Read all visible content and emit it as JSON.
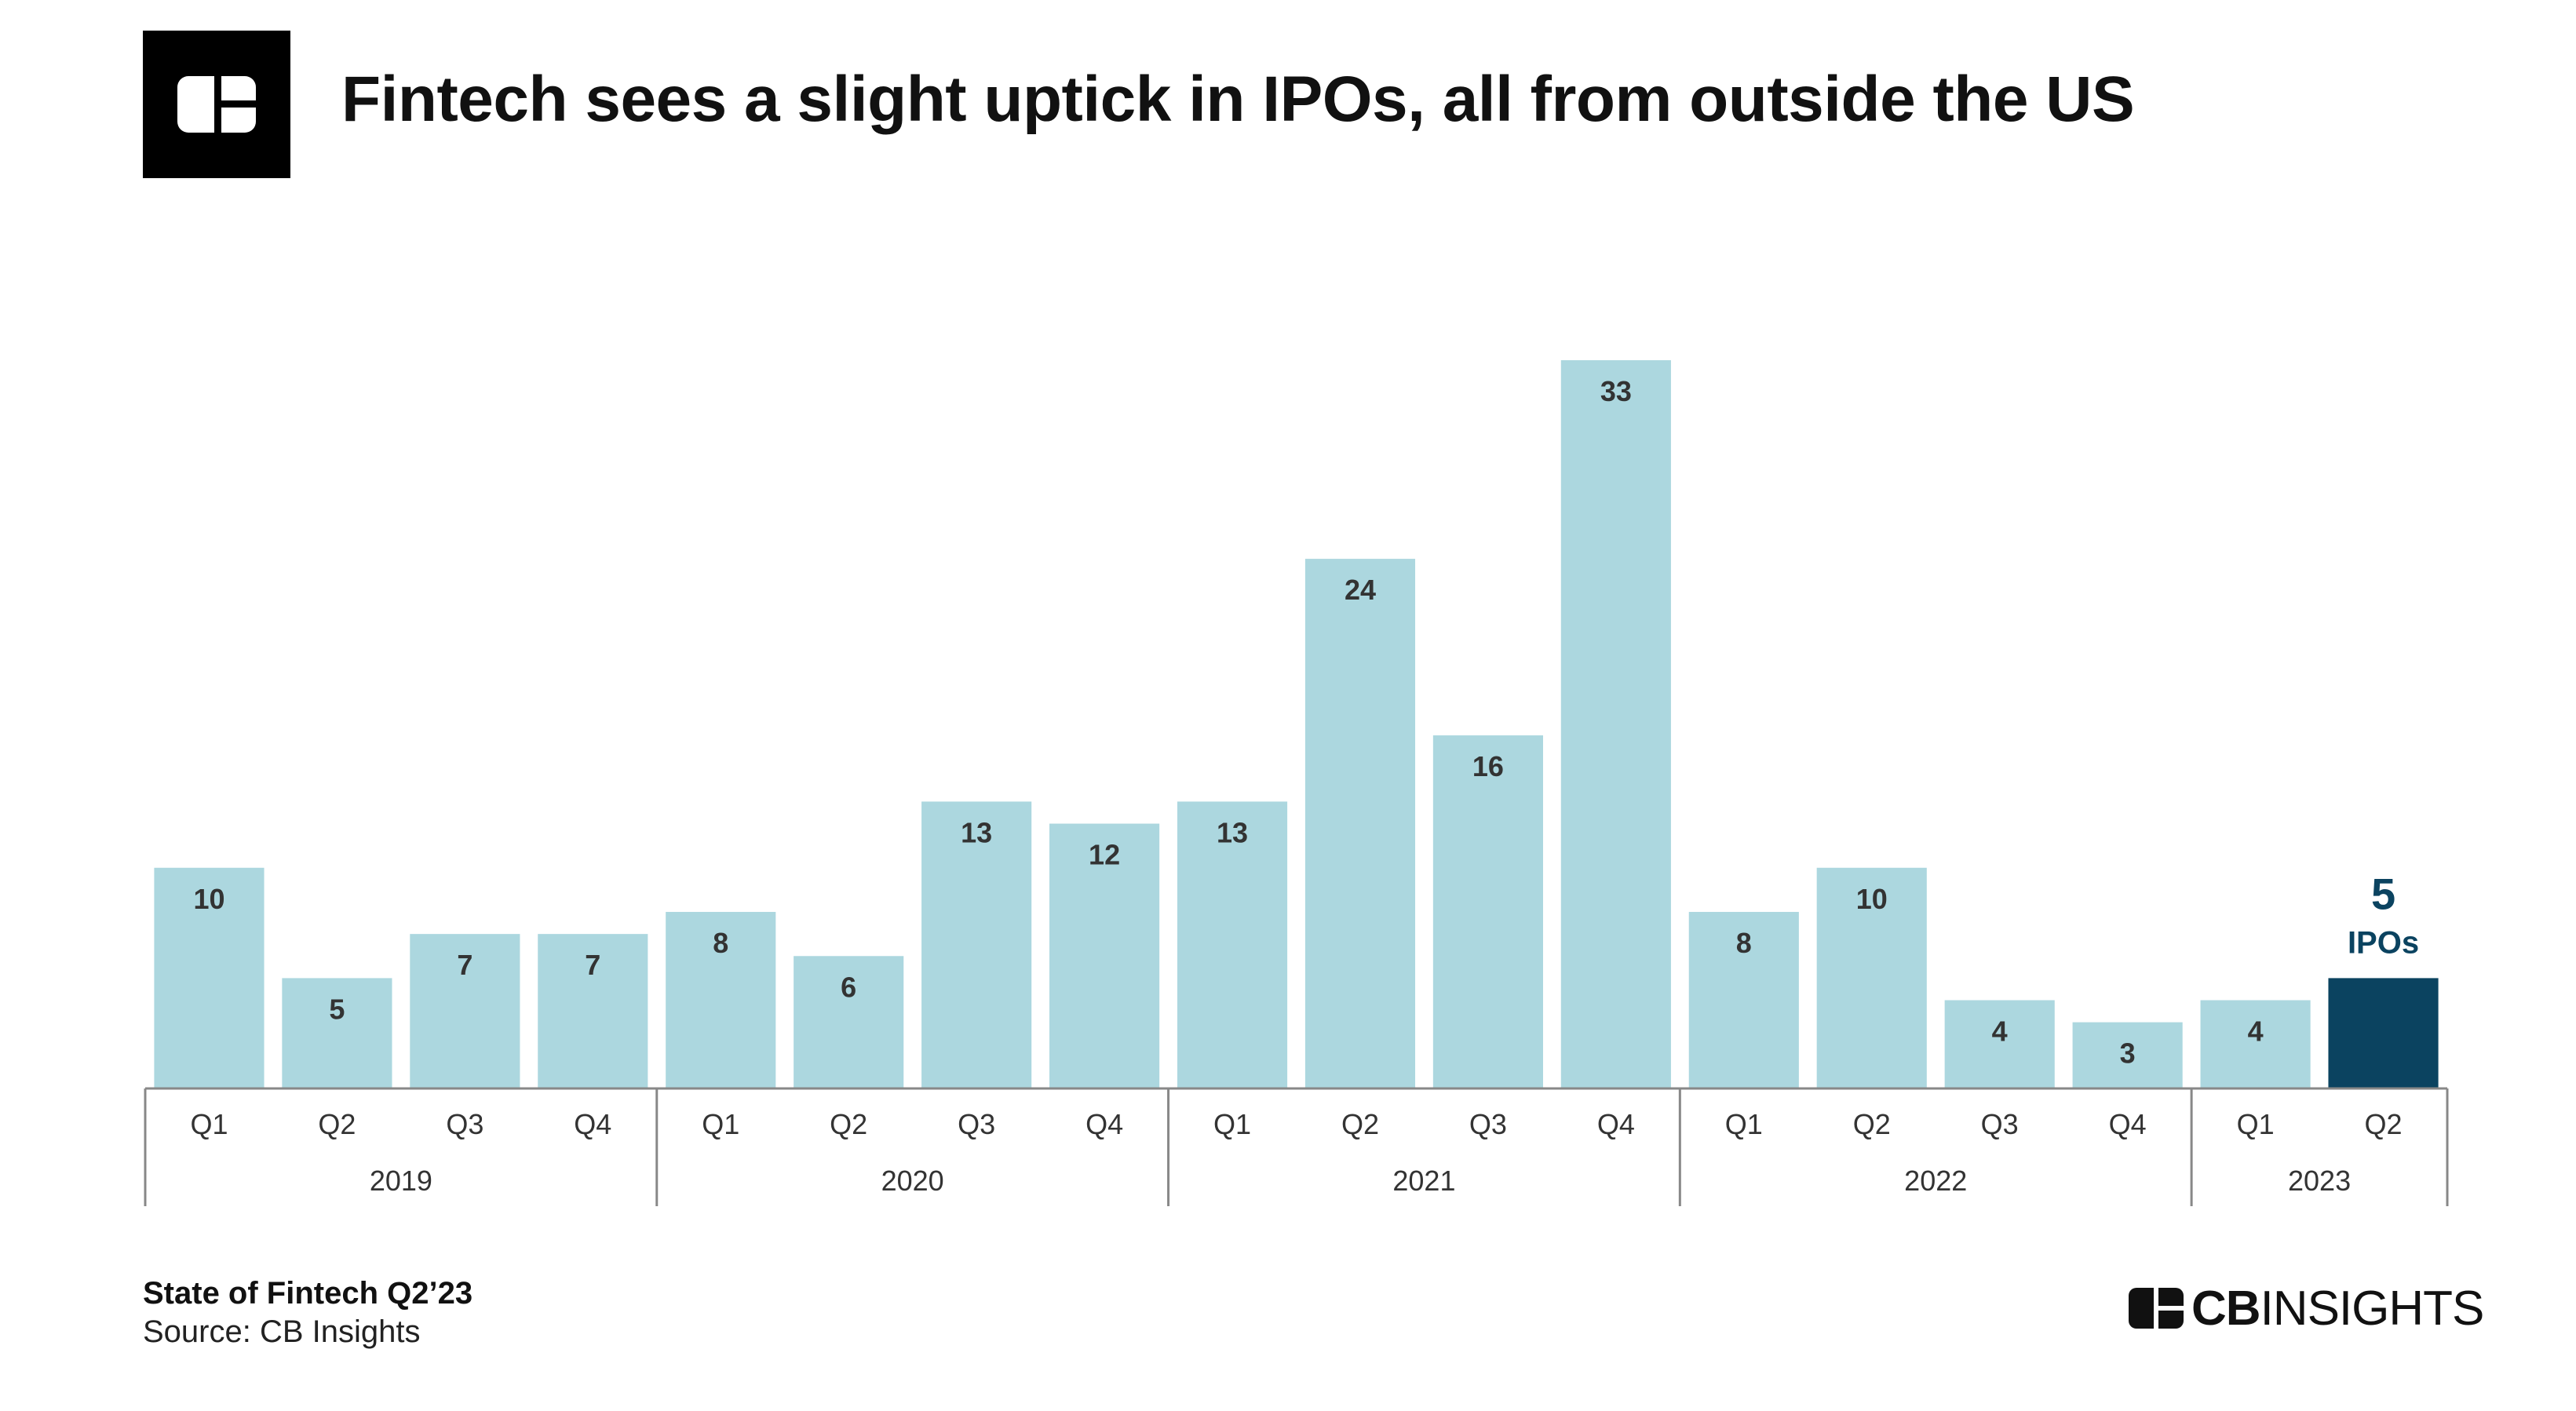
{
  "header": {
    "title": "Fintech sees a slight uptick in IPOs, all from outside the US"
  },
  "footer": {
    "report": "State of Fintech Q2’23",
    "source": "Source: CB Insights",
    "brand_bold": "CB",
    "brand_rest": "INSIGHTS"
  },
  "colors": {
    "bar": "#acd7df",
    "highlight": "#0b4360",
    "label": "#333333",
    "axis": "#888888"
  },
  "chart_data": {
    "type": "bar",
    "title": "Fintech sees a slight uptick in IPOs, all from outside the US",
    "xlabel": "",
    "ylabel": "",
    "ylim": [
      0,
      33
    ],
    "grid": false,
    "legend": "none",
    "categories": [
      "Q1",
      "Q2",
      "Q3",
      "Q4",
      "Q1",
      "Q2",
      "Q3",
      "Q4",
      "Q1",
      "Q2",
      "Q3",
      "Q4",
      "Q1",
      "Q2",
      "Q3",
      "Q4",
      "Q1",
      "Q2"
    ],
    "years": [
      {
        "label": "2019",
        "count": 4
      },
      {
        "label": "2020",
        "count": 4
      },
      {
        "label": "2021",
        "count": 4
      },
      {
        "label": "2022",
        "count": 4
      },
      {
        "label": "2023",
        "count": 2
      }
    ],
    "values": [
      10,
      5,
      7,
      7,
      8,
      6,
      13,
      12,
      13,
      24,
      16,
      33,
      8,
      10,
      4,
      3,
      4,
      5
    ],
    "highlight_index": 17,
    "highlight_label_value": "5",
    "highlight_label_unit": "IPOs"
  }
}
